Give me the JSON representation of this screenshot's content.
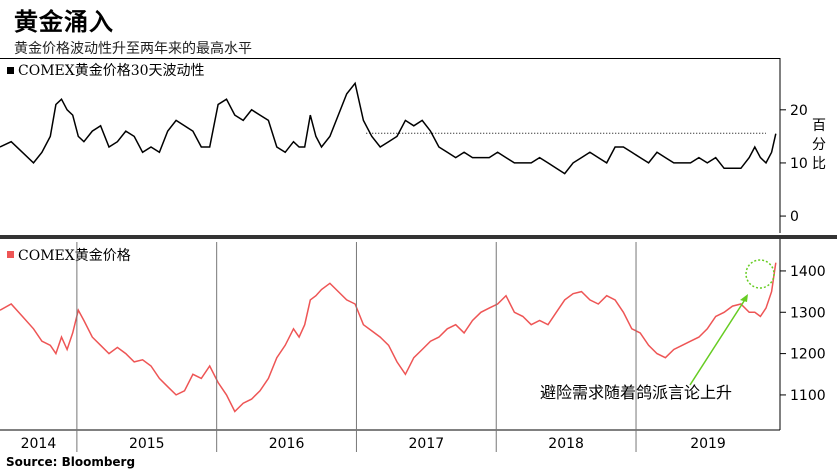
{
  "header": {
    "title": "黄金涌入",
    "subtitle": "黄金价格波动性升至两年来的最高水平"
  },
  "source": "Source: Bloomberg",
  "annotation": "避险需求随着鸽派言论上升",
  "colors": {
    "volatility": "#000000",
    "price": "#ee5555",
    "arrow": "#66cc22",
    "highlight": "#66cc22"
  },
  "chart_data": [
    {
      "type": "line",
      "legend": "COMEX黄金价格30天波动性",
      "ylabel": "百分比",
      "ylim": [
        -3,
        29
      ],
      "yticks": [
        0,
        10,
        20
      ],
      "x_range": [
        2013.9,
        2019.48
      ],
      "reference_level": 15.6,
      "series": [
        {
          "x": [
            2013.9,
            2013.98,
            2014.06,
            2014.14,
            2014.2,
            2014.26,
            2014.3,
            2014.34,
            2014.38,
            2014.42,
            2014.46,
            2014.5,
            2014.56,
            2014.62,
            2014.68,
            2014.74,
            2014.8,
            2014.86,
            2014.92,
            2014.98,
            2015.04,
            2015.1,
            2015.16,
            2015.22,
            2015.28,
            2015.34,
            2015.4,
            2015.46,
            2015.52,
            2015.58,
            2015.64,
            2015.7,
            2015.76,
            2015.82,
            2015.88,
            2015.94,
            2016.0,
            2016.04,
            2016.08,
            2016.12,
            2016.16,
            2016.2,
            2016.26,
            2016.32,
            2016.38,
            2016.44,
            2016.5,
            2016.56,
            2016.62,
            2016.68,
            2016.74,
            2016.8,
            2016.86,
            2016.92,
            2016.98,
            2017.04,
            2017.1,
            2017.16,
            2017.22,
            2017.28,
            2017.34,
            2017.4,
            2017.46,
            2017.52,
            2017.58,
            2017.64,
            2017.7,
            2017.76,
            2017.82,
            2017.88,
            2017.94,
            2018.0,
            2018.06,
            2018.12,
            2018.18,
            2018.24,
            2018.3,
            2018.36,
            2018.42,
            2018.48,
            2018.54,
            2018.6,
            2018.66,
            2018.72,
            2018.78,
            2018.84,
            2018.9,
            2018.96,
            2019.02,
            2019.08,
            2019.14,
            2019.2,
            2019.26,
            2019.3,
            2019.34,
            2019.38,
            2019.42,
            2019.45
          ],
          "y": [
            13,
            14,
            12,
            10,
            12,
            15,
            21,
            22,
            20,
            19,
            15,
            14,
            16,
            17,
            13,
            14,
            16,
            15,
            12,
            13,
            12,
            16,
            18,
            17,
            16,
            13,
            13,
            21,
            22,
            19,
            18,
            20,
            19,
            18,
            13,
            12,
            14,
            13,
            13,
            19,
            15,
            13,
            15,
            19,
            23,
            25,
            18,
            15,
            13,
            14,
            15,
            18,
            17,
            18,
            16,
            13,
            12,
            11,
            12,
            11,
            11,
            11,
            12,
            11,
            10,
            10,
            10,
            11,
            10,
            9,
            8,
            10,
            11,
            12,
            11,
            10,
            13,
            13,
            12,
            11,
            10,
            12,
            11,
            10,
            10,
            10,
            11,
            10,
            11,
            9,
            9,
            9,
            11,
            13,
            11,
            10,
            12,
            15.5
          ]
        }
      ]
    },
    {
      "type": "line",
      "legend": "COMEX黄金价格",
      "ylim": [
        1020,
        1470
      ],
      "yticks": [
        1100,
        1200,
        1300,
        1400
      ],
      "x_range": [
        2013.9,
        2019.48
      ],
      "categories": [
        "2014",
        "2015",
        "2016",
        "2017",
        "2018",
        "2019"
      ],
      "year_dividers": [
        2014.45,
        2015.45,
        2016.45,
        2017.45,
        2018.45
      ],
      "series": [
        {
          "x": [
            2013.9,
            2013.98,
            2014.06,
            2014.14,
            2014.2,
            2014.26,
            2014.3,
            2014.34,
            2014.38,
            2014.42,
            2014.46,
            2014.5,
            2014.56,
            2014.62,
            2014.68,
            2014.74,
            2014.8,
            2014.86,
            2014.92,
            2014.98,
            2015.04,
            2015.1,
            2015.16,
            2015.22,
            2015.28,
            2015.34,
            2015.4,
            2015.46,
            2015.52,
            2015.58,
            2015.64,
            2015.7,
            2015.76,
            2015.82,
            2015.88,
            2015.94,
            2016.0,
            2016.04,
            2016.08,
            2016.12,
            2016.16,
            2016.2,
            2016.26,
            2016.32,
            2016.38,
            2016.44,
            2016.5,
            2016.56,
            2016.62,
            2016.68,
            2016.74,
            2016.8,
            2016.86,
            2016.92,
            2016.98,
            2017.04,
            2017.1,
            2017.16,
            2017.22,
            2017.28,
            2017.34,
            2017.4,
            2017.46,
            2017.52,
            2017.58,
            2017.64,
            2017.7,
            2017.76,
            2017.82,
            2017.88,
            2017.94,
            2018.0,
            2018.06,
            2018.12,
            2018.18,
            2018.24,
            2018.3,
            2018.36,
            2018.42,
            2018.48,
            2018.54,
            2018.6,
            2018.66,
            2018.72,
            2018.78,
            2018.84,
            2018.9,
            2018.96,
            2019.02,
            2019.08,
            2019.14,
            2019.2,
            2019.26,
            2019.3,
            2019.34,
            2019.38,
            2019.42,
            2019.45
          ],
          "y": [
            1305,
            1320,
            1290,
            1260,
            1230,
            1220,
            1200,
            1240,
            1210,
            1250,
            1305,
            1280,
            1240,
            1220,
            1200,
            1215,
            1200,
            1180,
            1185,
            1170,
            1140,
            1120,
            1100,
            1110,
            1150,
            1140,
            1170,
            1130,
            1100,
            1060,
            1080,
            1090,
            1110,
            1140,
            1190,
            1220,
            1260,
            1240,
            1270,
            1330,
            1340,
            1355,
            1370,
            1350,
            1330,
            1320,
            1270,
            1255,
            1240,
            1220,
            1180,
            1150,
            1190,
            1210,
            1230,
            1240,
            1260,
            1270,
            1250,
            1280,
            1300,
            1310,
            1320,
            1340,
            1300,
            1290,
            1270,
            1280,
            1270,
            1300,
            1330,
            1345,
            1350,
            1330,
            1320,
            1340,
            1330,
            1300,
            1260,
            1250,
            1220,
            1200,
            1190,
            1210,
            1220,
            1230,
            1240,
            1260,
            1290,
            1300,
            1315,
            1320,
            1300,
            1300,
            1290,
            1310,
            1350,
            1420
          ]
        }
      ]
    }
  ]
}
